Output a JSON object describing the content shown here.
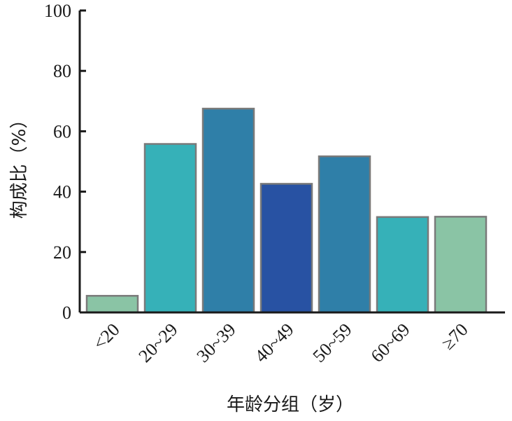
{
  "chart_data": {
    "type": "bar",
    "categories": [
      "<20",
      "20~29",
      "30~39",
      "40~49",
      "50~59",
      "60~69",
      "≥70"
    ],
    "values": [
      5.5,
      55.8,
      67.5,
      42.6,
      51.7,
      31.6,
      31.7
    ],
    "bar_colors": [
      "#8ac4a5",
      "#36b1b8",
      "#2f7fa8",
      "#2852a3",
      "#2f7fa8",
      "#36b1b8",
      "#8ac4a5"
    ],
    "xlabel": "年龄分组（岁）",
    "ylabel": "构成比（%）",
    "ylim": [
      0,
      100
    ],
    "yticks": [
      "0",
      "20",
      "40",
      "60",
      "80",
      "100"
    ],
    "grid": false
  }
}
